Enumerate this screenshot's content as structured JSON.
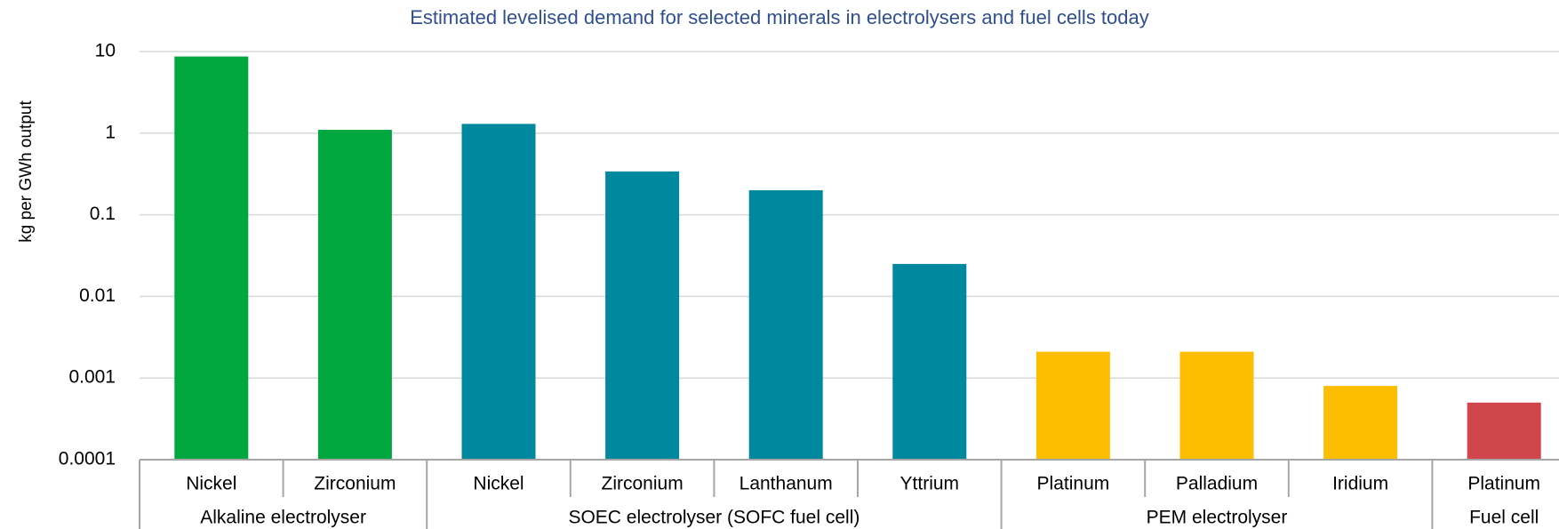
{
  "chart_data": {
    "type": "bar",
    "title": "Estimated levelised demand for selected minerals in electrolysers and fuel cells today",
    "y_label": "kg per GWh output",
    "log_scale": true,
    "grid": true,
    "ylim": [
      0.0001,
      10
    ],
    "yticks": [
      10,
      1,
      0.1,
      0.01,
      0.001,
      0.0001
    ],
    "groups": [
      {
        "name": "Alkaline electrolyser",
        "color": "#00a73e",
        "categories": [
          "Nickel",
          "Zirconium"
        ],
        "values": [
          8.7,
          1.1
        ]
      },
      {
        "name": "SOEC electrolyser (SOFC fuel cell)",
        "color": "#00889e",
        "categories": [
          "Nickel",
          "Zirconium",
          "Lanthanum",
          "Yttrium"
        ],
        "values": [
          1.3,
          0.34,
          0.2,
          0.025
        ]
      },
      {
        "name": "PEM electrolyser",
        "color": "#fdbd00",
        "categories": [
          "Platinum",
          "Palladium",
          "Iridium"
        ],
        "values": [
          0.0021,
          0.0021,
          0.0008
        ]
      },
      {
        "name": "Fuel cell",
        "color": "#d1464a",
        "categories": [
          "Platinum"
        ],
        "values": [
          0.0005
        ]
      }
    ]
  }
}
